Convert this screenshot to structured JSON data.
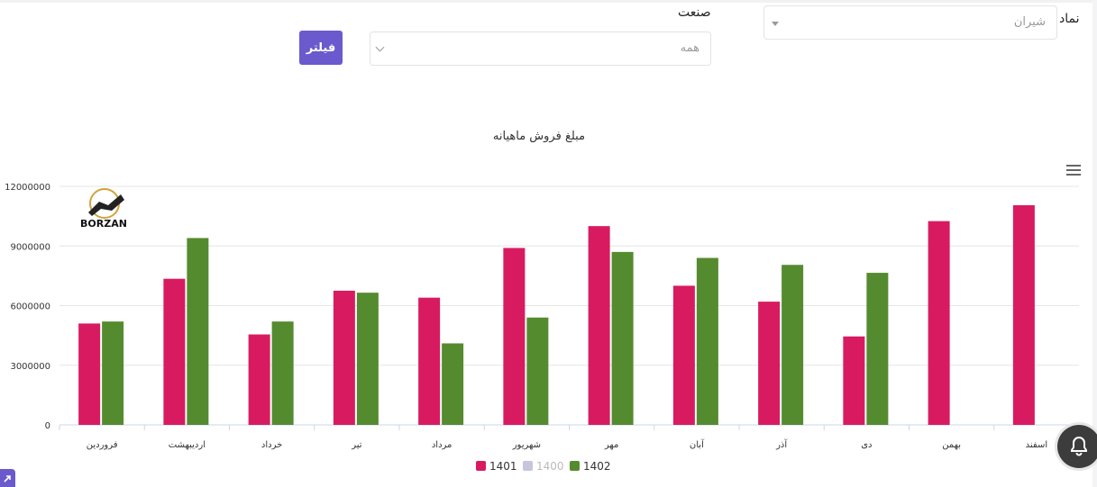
{
  "filters": {
    "symbol_label": "نماد",
    "symbol_value": "شیران",
    "industry_label": "صنعت",
    "industry_value": "همه",
    "filter_button": "فیلتر"
  },
  "logo_text": "BORZAN",
  "colors": {
    "s1401": "#d81b60",
    "s1400": "#c5c5dd",
    "s1402": "#558b2f",
    "accent": "#6a5acd"
  },
  "chart_data": {
    "type": "bar",
    "title": "مبلغ فروش ماهیانه",
    "categories": [
      "فروردین",
      "اردیبهشت",
      "خرداد",
      "تیر",
      "مرداد",
      "شهریور",
      "مهر",
      "آبان",
      "آذر",
      "دی",
      "بهمن",
      "اسفند"
    ],
    "series": [
      {
        "name": "1401",
        "values": [
          5100000,
          7350000,
          4550000,
          6750000,
          6400000,
          8900000,
          10000000,
          7000000,
          6200000,
          4450000,
          10250000,
          11050000
        ]
      },
      {
        "name": "1400",
        "values": [
          null,
          null,
          null,
          null,
          null,
          null,
          null,
          null,
          null,
          null,
          null,
          null
        ],
        "hidden": true
      },
      {
        "name": "1402",
        "values": [
          5200000,
          9400000,
          5200000,
          6650000,
          4100000,
          5400000,
          8700000,
          8400000,
          8050000,
          7650000,
          null,
          null
        ]
      }
    ],
    "ylim": [
      0,
      12000000
    ],
    "yticks": [
      0,
      3000000,
      6000000,
      9000000,
      12000000
    ],
    "ytick_labels": [
      "0",
      "3000000",
      "6000000",
      "9000000",
      "12000000"
    ],
    "grid": true,
    "legend": "bottom-center"
  }
}
